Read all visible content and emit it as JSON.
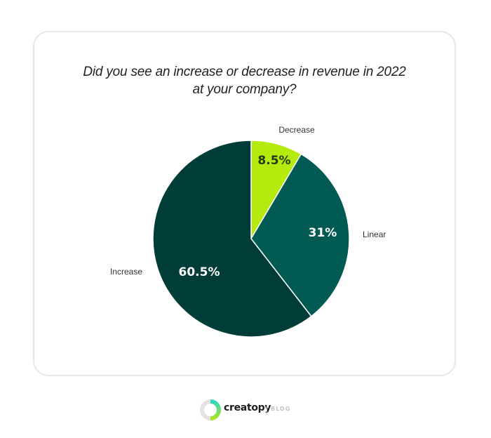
{
  "chart_data": {
    "type": "pie",
    "title": "Did you see an increase or decrease in revenue in 2022 at your company?",
    "title_lines": [
      "Did you see an increase or decrease in revenue in 2022",
      "at your company?"
    ],
    "start_angle_deg": 0,
    "direction": "clockwise",
    "slices": [
      {
        "label": "Decrease",
        "value": 8.5,
        "display": "8.5%",
        "color": "#b5ea0f",
        "text_color": "#1f3a1a"
      },
      {
        "label": "Linear",
        "value": 31,
        "display": "31%",
        "color": "#025b53",
        "text_color": "#ffffff"
      },
      {
        "label": "Increase",
        "value": 60.5,
        "display": "60.5%",
        "color": "#013d38",
        "text_color": "#ffffff"
      }
    ],
    "legend": "none (labels placed outside slices)"
  },
  "footer": {
    "brand": "creatopy",
    "section": "BLOG"
  }
}
